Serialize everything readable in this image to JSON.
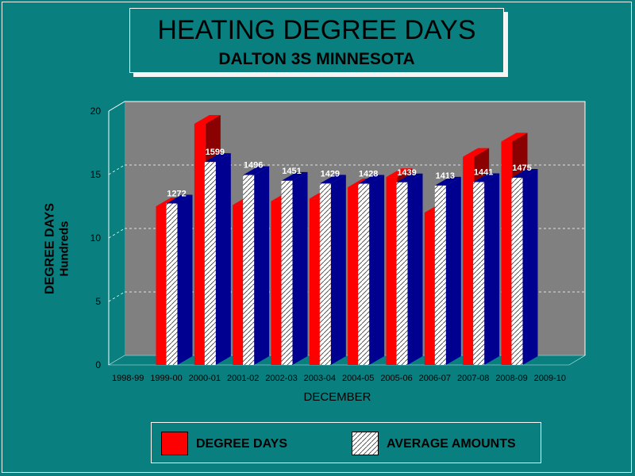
{
  "chart_data": {
    "type": "bar",
    "title": "HEATING DEGREE DAYS",
    "subtitle": "DALTON 3S MINNESOTA",
    "xlabel": "DECEMBER",
    "ylabel": "DEGREE DAYS",
    "ylabel_unit": "Hundreds",
    "ylim": [
      0,
      20
    ],
    "yticks": [
      "0",
      "5",
      "10",
      "15",
      "20"
    ],
    "grid": true,
    "legend_placement": "bottom",
    "categories": [
      "1998-99",
      "1999-00",
      "2000-01",
      "2001-02",
      "2002-03",
      "2003-04",
      "2004-05",
      "2005-06",
      "2006-07",
      "2007-08",
      "2008-09",
      "2009-10"
    ],
    "series": [
      {
        "name": "DEGREE DAYS",
        "color": "#ff0000",
        "values": [
          null,
          12.5,
          19.0,
          12.6,
          12.9,
          13.1,
          14.0,
          14.8,
          12.0,
          16.4,
          17.6,
          null
        ]
      },
      {
        "name": "AVERAGE AMOUNTS",
        "color": "#ffffff",
        "values": [
          null,
          12.72,
          15.99,
          14.96,
          14.51,
          14.29,
          14.28,
          14.39,
          14.13,
          14.41,
          14.75,
          null
        ]
      }
    ],
    "data_labels": [
      "",
      "1272",
      "1599",
      "1496",
      "1451",
      "1429",
      "1428",
      "1439",
      "1413",
      "1441",
      "1475",
      ""
    ]
  },
  "colors": {
    "background": "#0a7f7f",
    "plot_wall": "#808080",
    "degree_days": "#ff0000",
    "degree_days_side": "#8b0000",
    "average_side": "#000090"
  }
}
